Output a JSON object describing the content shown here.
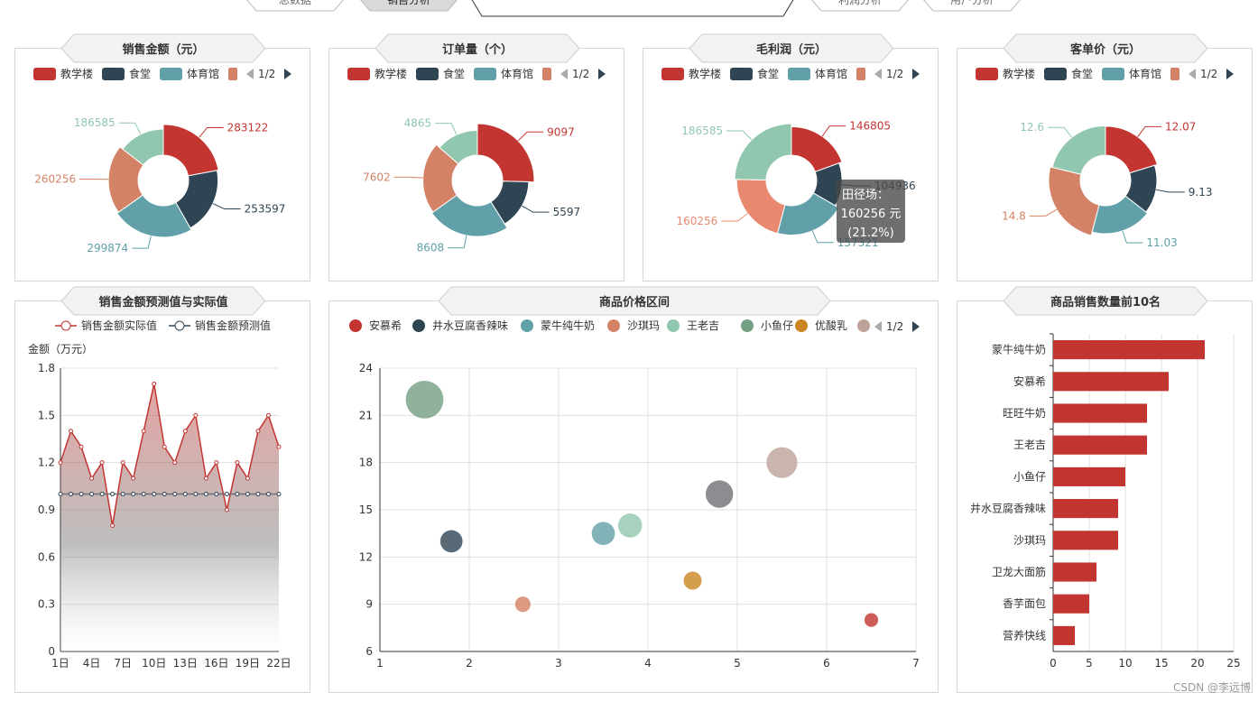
{
  "nav": {
    "tabs": [
      "总数据",
      "销售分析",
      "",
      "利润分析",
      "用户分析"
    ],
    "active": 1
  },
  "legend_common": {
    "items": [
      "教学楼",
      "食堂",
      "体育馆"
    ],
    "colors": [
      "#c23531",
      "#2f4554",
      "#61a0a8",
      "#d48265"
    ],
    "page": "1/2"
  },
  "donuts": [
    {
      "title": "销售金额（元）",
      "labels": [
        "283122",
        "253597",
        "299874",
        "260256",
        "186585"
      ],
      "values": [
        283122,
        253597,
        299874,
        260256,
        186585
      ]
    },
    {
      "title": "订单量（个）",
      "labels": [
        "9097",
        "5597",
        "8608",
        "7602",
        "4865"
      ],
      "values": [
        9097,
        5597,
        8608,
        7602,
        4865
      ]
    },
    {
      "title": "毛利润（元）",
      "labels": [
        "146805",
        "104936",
        "157321",
        "160256",
        "186585"
      ],
      "values": [
        146805,
        104936,
        157321,
        160256,
        186585
      ],
      "tooltip": {
        "line1": "田径场：",
        "line2": "160256 元",
        "line3": "(21.2%)"
      }
    },
    {
      "title": "客单价（元）",
      "labels": [
        "12.07",
        "9.13",
        "11.03",
        "14.8",
        "12.6"
      ],
      "values": [
        12.07,
        9.13,
        11.03,
        14.8,
        12.6
      ]
    }
  ],
  "colors": {
    "palette": [
      "#c23531",
      "#2f4554",
      "#61a0a8",
      "#d48265",
      "#91c7ae",
      "#749f83",
      "#ca8622",
      "#bda29a",
      "#6e7074"
    ]
  },
  "line_chart": {
    "title": "销售金额预测值与实际值",
    "legend": [
      "销售金额实际值",
      "销售金额预测值"
    ],
    "chart_data": {
      "type": "area",
      "ylabel": "金额（万元）",
      "ylim": [
        0,
        1.8
      ],
      "yticks": [
        "0",
        "0.3",
        "0.6",
        "0.9",
        "1.2",
        "1.5",
        "1.8"
      ],
      "xticks": [
        "1日",
        "4日",
        "7日",
        "10日",
        "13日",
        "16日",
        "19日",
        "22日"
      ],
      "actual": [
        1.2,
        1.4,
        1.3,
        1.1,
        1.2,
        0.8,
        1.2,
        1.1,
        1.4,
        1.7,
        1.3,
        1.2,
        1.4,
        1.5,
        1.1,
        1.2,
        0.9,
        1.2,
        1.1,
        1.4,
        1.5,
        1.3
      ],
      "predicted": [
        1.0,
        1.0,
        1.0,
        1.0,
        1.0,
        1.0,
        1.0,
        1.0,
        1.0,
        1.0,
        1.0,
        1.0,
        1.0,
        1.0,
        1.0,
        1.0,
        1.0,
        1.0,
        1.0,
        1.0,
        1.0,
        1.0
      ]
    }
  },
  "scatter": {
    "title": "商品价格区间",
    "legend": [
      "安慕希",
      "井水豆腐香辣味",
      "蒙牛纯牛奶",
      "沙琪玛",
      "王老吉",
      "小鱼仔",
      "优酸乳"
    ],
    "page": "1/2",
    "chart_data": {
      "type": "scatter",
      "xlim": [
        1,
        7
      ],
      "ylim": [
        6,
        24
      ],
      "xticks": [
        "1",
        "2",
        "3",
        "4",
        "5",
        "6",
        "7"
      ],
      "yticks": [
        "6",
        "9",
        "12",
        "15",
        "18",
        "21",
        "24"
      ],
      "points": [
        {
          "name": "安慕希",
          "x": 6.5,
          "y": 8,
          "size": 8,
          "color": "#c23531"
        },
        {
          "name": "井水豆腐香辣味",
          "x": 1.8,
          "y": 13,
          "size": 13,
          "color": "#2f4554"
        },
        {
          "name": "蒙牛纯牛奶",
          "x": 3.5,
          "y": 13.5,
          "size": 13.5,
          "color": "#61a0a8"
        },
        {
          "name": "沙琪玛",
          "x": 2.6,
          "y": 9,
          "size": 9,
          "color": "#d48265"
        },
        {
          "name": "王老吉",
          "x": 3.8,
          "y": 14,
          "size": 14,
          "color": "#91c7ae"
        },
        {
          "name": "小鱼仔",
          "x": 1.5,
          "y": 22,
          "size": 22,
          "color": "#749f83"
        },
        {
          "name": "优酸乳",
          "x": 4.5,
          "y": 10.5,
          "size": 10.5,
          "color": "#ca8622"
        },
        {
          "name": "",
          "x": 5.5,
          "y": 18,
          "size": 18,
          "color": "#bda29a"
        },
        {
          "name": "",
          "x": 4.8,
          "y": 16,
          "size": 16,
          "color": "#6e7074"
        }
      ]
    }
  },
  "hbar": {
    "title": "商品销售数量前10名",
    "chart_data": {
      "type": "bar",
      "orientation": "horizontal",
      "categories": [
        "蒙牛纯牛奶",
        "安慕希",
        "旺旺牛奶",
        "王老吉",
        "小鱼仔",
        "井水豆腐香辣味",
        "沙琪玛",
        "卫龙大面筋",
        "香芋面包",
        "营养快线"
      ],
      "values": [
        21,
        16,
        13,
        13,
        10,
        9,
        9,
        6,
        5,
        3
      ],
      "xlim": [
        0,
        25
      ],
      "xticks": [
        "0",
        "5",
        "10",
        "15",
        "20",
        "25"
      ]
    }
  },
  "watermark": "CSDN @李远博"
}
